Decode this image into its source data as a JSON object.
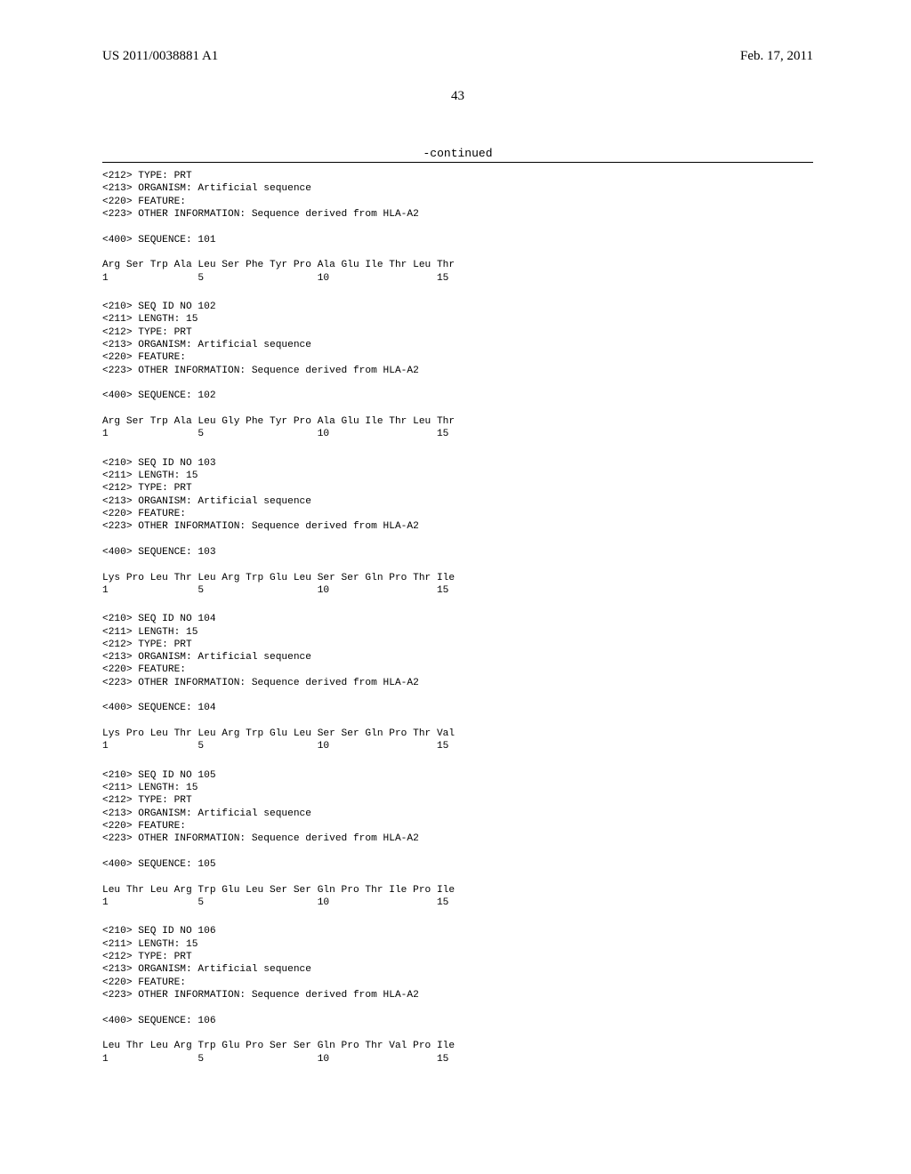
{
  "header": {
    "left": "US 2011/0038881 A1",
    "right": "Feb. 17, 2011"
  },
  "page_number": "43",
  "continued_label": "-continued",
  "sequences": [
    {
      "preamble": [
        "<212> TYPE: PRT",
        "<213> ORGANISM: Artificial sequence",
        "<220> FEATURE:",
        "<223> OTHER INFORMATION: Sequence derived from HLA-A2"
      ],
      "seq_header": "<400> SEQUENCE: 101",
      "seq_line": "Arg Ser Trp Ala Leu Ser Phe Tyr Pro Ala Glu Ile Thr Leu Thr",
      "num_line": "1               5                   10                  15"
    },
    {
      "preamble": [
        "<210> SEQ ID NO 102",
        "<211> LENGTH: 15",
        "<212> TYPE: PRT",
        "<213> ORGANISM: Artificial sequence",
        "<220> FEATURE:",
        "<223> OTHER INFORMATION: Sequence derived from HLA-A2"
      ],
      "seq_header": "<400> SEQUENCE: 102",
      "seq_line": "Arg Ser Trp Ala Leu Gly Phe Tyr Pro Ala Glu Ile Thr Leu Thr",
      "num_line": "1               5                   10                  15"
    },
    {
      "preamble": [
        "<210> SEQ ID NO 103",
        "<211> LENGTH: 15",
        "<212> TYPE: PRT",
        "<213> ORGANISM: Artificial sequence",
        "<220> FEATURE:",
        "<223> OTHER INFORMATION: Sequence derived from HLA-A2"
      ],
      "seq_header": "<400> SEQUENCE: 103",
      "seq_line": "Lys Pro Leu Thr Leu Arg Trp Glu Leu Ser Ser Gln Pro Thr Ile",
      "num_line": "1               5                   10                  15"
    },
    {
      "preamble": [
        "<210> SEQ ID NO 104",
        "<211> LENGTH: 15",
        "<212> TYPE: PRT",
        "<213> ORGANISM: Artificial sequence",
        "<220> FEATURE:",
        "<223> OTHER INFORMATION: Sequence derived from HLA-A2"
      ],
      "seq_header": "<400> SEQUENCE: 104",
      "seq_line": "Lys Pro Leu Thr Leu Arg Trp Glu Leu Ser Ser Gln Pro Thr Val",
      "num_line": "1               5                   10                  15"
    },
    {
      "preamble": [
        "<210> SEQ ID NO 105",
        "<211> LENGTH: 15",
        "<212> TYPE: PRT",
        "<213> ORGANISM: Artificial sequence",
        "<220> FEATURE:",
        "<223> OTHER INFORMATION: Sequence derived from HLA-A2"
      ],
      "seq_header": "<400> SEQUENCE: 105",
      "seq_line": "Leu Thr Leu Arg Trp Glu Leu Ser Ser Gln Pro Thr Ile Pro Ile",
      "num_line": "1               5                   10                  15"
    },
    {
      "preamble": [
        "<210> SEQ ID NO 106",
        "<211> LENGTH: 15",
        "<212> TYPE: PRT",
        "<213> ORGANISM: Artificial sequence",
        "<220> FEATURE:",
        "<223> OTHER INFORMATION: Sequence derived from HLA-A2"
      ],
      "seq_header": "<400> SEQUENCE: 106",
      "seq_line": "Leu Thr Leu Arg Trp Glu Pro Ser Ser Gln Pro Thr Val Pro Ile",
      "num_line": "1               5                   10                  15"
    }
  ]
}
